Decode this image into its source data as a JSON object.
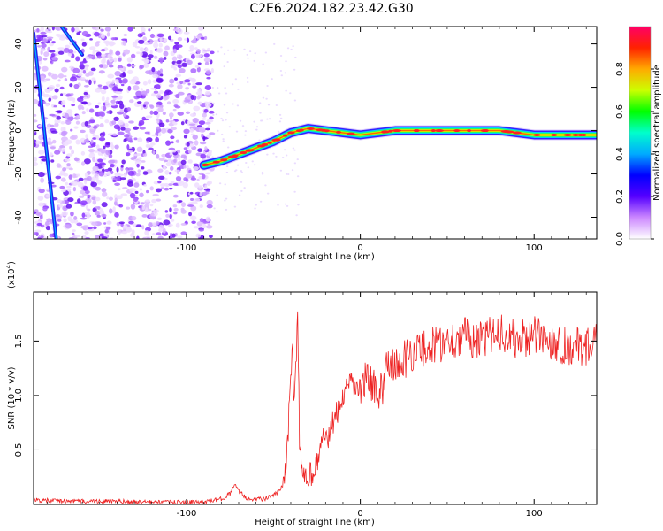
{
  "title": "C2E6.2024.182.23.42.G30",
  "chart_data": [
    {
      "type": "heatmap",
      "xlabel": "Height of straight line (km)",
      "ylabel": "Frequency (Hz)",
      "xlim": [
        -188,
        136
      ],
      "ylim": [
        -50,
        48
      ],
      "xticks": [
        -100,
        0,
        100
      ],
      "yticks": [
        -40,
        -20,
        0,
        20,
        40
      ],
      "colorbar": {
        "label": "Normalized spectral amplitude",
        "range": [
          0,
          1
        ],
        "ticks": [
          "0.0",
          "0.2",
          "0.4",
          "0.6",
          "0.8"
        ],
        "colors": [
          "#ffffff",
          "#cc88ff",
          "#5500ff",
          "#0000ff",
          "#00aaff",
          "#00ffcc",
          "#00ff00",
          "#ccff00",
          "#ffaa00",
          "#ff2200",
          "#ff0066"
        ]
      },
      "ridge": {
        "x": [
          -90,
          -80,
          -70,
          -60,
          -50,
          -40,
          -30,
          -20,
          0,
          20,
          40,
          60,
          80,
          100,
          120,
          136
        ],
        "frequency": [
          -16,
          -14,
          -11,
          -8,
          -5,
          -1,
          1,
          0,
          -2,
          0,
          0,
          0,
          0,
          -2,
          -2,
          -2
        ]
      },
      "diagonal_streaks": [
        {
          "x": [
            -188,
            -175
          ],
          "frequency": [
            45,
            -50
          ]
        },
        {
          "x": [
            -172,
            -160
          ],
          "frequency": [
            48,
            35
          ]
        }
      ]
    },
    {
      "type": "line",
      "xlabel": "Height of straight line (km)",
      "ylabel": "SNR (10 * v/v)",
      "yscale_label": "(x10",
      "yscale_exp": "4",
      "yscale_close": ")",
      "xlim": [
        -188,
        136
      ],
      "ylim": [
        0,
        1.95
      ],
      "xticks": [
        -100,
        0,
        100
      ],
      "yticks": [
        "0.5",
        "1.0",
        "1.5"
      ],
      "ytick_values": [
        0.5,
        1.0,
        1.5
      ],
      "series": [
        {
          "color": "#ee2222",
          "x": [
            -188,
            -170,
            -150,
            -120,
            -100,
            -90,
            -80,
            -75,
            -72,
            -70,
            -65,
            -55,
            -48,
            -44,
            -42,
            -40,
            -39,
            -38,
            -36,
            -35,
            -34,
            -33,
            -30,
            -25,
            -22,
            -20,
            -18,
            -15,
            -12,
            -10,
            -5,
            0,
            5,
            10,
            13,
            15,
            20,
            30,
            40,
            50,
            60,
            70,
            80,
            90,
            100,
            110,
            120,
            130,
            136
          ],
          "values": [
            0.04,
            0.03,
            0.03,
            0.02,
            0.02,
            0.02,
            0.05,
            0.1,
            0.18,
            0.12,
            0.05,
            0.05,
            0.1,
            0.18,
            0.5,
            1.2,
            1.5,
            0.9,
            1.7,
            0.6,
            0.4,
            0.3,
            0.25,
            0.35,
            0.6,
            0.65,
            0.6,
            0.8,
            0.85,
            1.0,
            1.1,
            1.05,
            1.2,
            0.95,
            1.1,
            1.35,
            1.25,
            1.4,
            1.45,
            1.5,
            1.55,
            1.5,
            1.6,
            1.5,
            1.55,
            1.5,
            1.45,
            1.45,
            1.5
          ]
        }
      ]
    }
  ]
}
